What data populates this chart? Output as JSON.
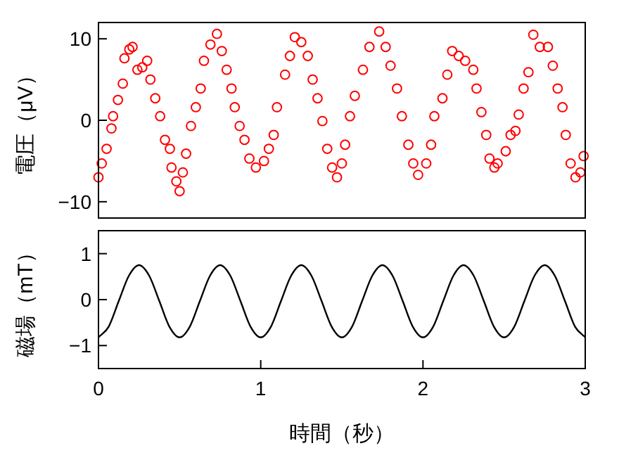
{
  "chart_data": [
    {
      "type": "scatter",
      "ylabel": "電圧（μV）",
      "xlim": [
        0,
        3
      ],
      "ylim": [
        -12,
        12
      ],
      "yticks": [
        -10,
        0,
        10
      ],
      "tick_labels": "y",
      "color": "#ff0000",
      "marker": "circle",
      "x": [
        0,
        0.02,
        0.05,
        0.08,
        0.09,
        0.12,
        0.15,
        0.16,
        0.19,
        0.21,
        0.24,
        0.27,
        0.3,
        0.32,
        0.35,
        0.38,
        0.41,
        0.44,
        0.45,
        0.48,
        0.5,
        0.52,
        0.54,
        0.57,
        0.6,
        0.63,
        0.65,
        0.69,
        0.73,
        0.76,
        0.79,
        0.82,
        0.84,
        0.87,
        0.9,
        0.93,
        0.97,
        1.02,
        1.05,
        1.08,
        1.1,
        1.15,
        1.18,
        1.21,
        1.25,
        1.29,
        1.32,
        1.35,
        1.38,
        1.41,
        1.44,
        1.47,
        1.5,
        1.52,
        1.55,
        1.58,
        1.63,
        1.67,
        1.73,
        1.77,
        1.8,
        1.84,
        1.87,
        1.91,
        1.94,
        1.97,
        2.02,
        2.05,
        2.07,
        2.12,
        2.15,
        2.18,
        2.22,
        2.26,
        2.31,
        2.33,
        2.36,
        2.39,
        2.41,
        2.44,
        2.46,
        2.51,
        2.54,
        2.57,
        2.59,
        2.62,
        2.65,
        2.68,
        2.72,
        2.77,
        2.8,
        2.83,
        2.86,
        2.88,
        2.91,
        2.94,
        2.97,
        2.99
      ],
      "values": [
        -7,
        -5.3,
        -3.5,
        -1,
        0.5,
        2.5,
        4.5,
        7.6,
        8.7,
        9,
        6.2,
        6.5,
        7.3,
        5,
        2.7,
        0.5,
        -2.4,
        -3.5,
        -5.8,
        -7.5,
        -8.7,
        -6.4,
        -4.1,
        -0.7,
        1.6,
        3.9,
        7.3,
        9.3,
        10.6,
        8.5,
        6.2,
        3.9,
        1.6,
        -0.7,
        -2.4,
        -4.7,
        -5.8,
        -5,
        -3.5,
        -1.8,
        1.6,
        5.6,
        7.9,
        10.2,
        9.6,
        7.9,
        5,
        2.7,
        -0.1,
        -3.5,
        -5.8,
        -7,
        -5.3,
        -3,
        0.5,
        3,
        6.2,
        9,
        10.9,
        9,
        6.7,
        3.9,
        0.5,
        -3,
        -5.3,
        -6.7,
        -5.3,
        -3,
        0.5,
        2.7,
        5.6,
        8.5,
        7.9,
        7.3,
        6.2,
        3.9,
        1,
        -1.8,
        -4.7,
        -5.8,
        -5.3,
        -3.8,
        -1.8,
        -1.3,
        0.7,
        3.9,
        5.9,
        10.5,
        9,
        9,
        6.7,
        3.9,
        1.6,
        -1.8,
        -5.3,
        -7,
        -6.4,
        -4.4
      ]
    },
    {
      "type": "line",
      "ylabel": "磁場（mT）",
      "xlabel": "時間（秒）",
      "xlim": [
        0,
        3
      ],
      "xticks": [
        0,
        1,
        2,
        3
      ],
      "ylim": [
        -1.5,
        1.5
      ],
      "yticks": [
        -1,
        0,
        1
      ],
      "color": "#000000",
      "x": [
        0,
        0.0625,
        0.125,
        0.1875,
        0.25,
        0.3125,
        0.375,
        0.4375,
        0.5,
        0.5625,
        0.625,
        0.6875,
        0.75,
        0.8125,
        0.875,
        0.9375,
        1,
        1.0625,
        1.125,
        1.1875,
        1.25,
        1.3125,
        1.375,
        1.4375,
        1.5,
        1.5625,
        1.625,
        1.6875,
        1.75,
        1.8125,
        1.875,
        1.9375,
        2,
        2.0625,
        2.125,
        2.1875,
        2.25,
        2.3125,
        2.375,
        2.4375,
        2.5,
        2.5625,
        2.625,
        2.6875,
        2.75,
        2.8125,
        2.875,
        2.9375,
        3
      ],
      "values": [
        -0.82,
        -0.59,
        -0.03,
        0.52,
        0.75,
        0.52,
        -0.03,
        -0.59,
        -0.82,
        -0.59,
        -0.03,
        0.52,
        0.75,
        0.52,
        -0.03,
        -0.59,
        -0.82,
        -0.59,
        -0.03,
        0.52,
        0.75,
        0.52,
        -0.03,
        -0.59,
        -0.82,
        -0.59,
        -0.03,
        0.52,
        0.75,
        0.52,
        -0.03,
        -0.59,
        -0.82,
        -0.59,
        -0.03,
        0.52,
        0.75,
        0.52,
        -0.03,
        -0.59,
        -0.82,
        -0.59,
        -0.03,
        0.52,
        0.75,
        0.52,
        -0.03,
        -0.59,
        -0.82
      ]
    }
  ]
}
